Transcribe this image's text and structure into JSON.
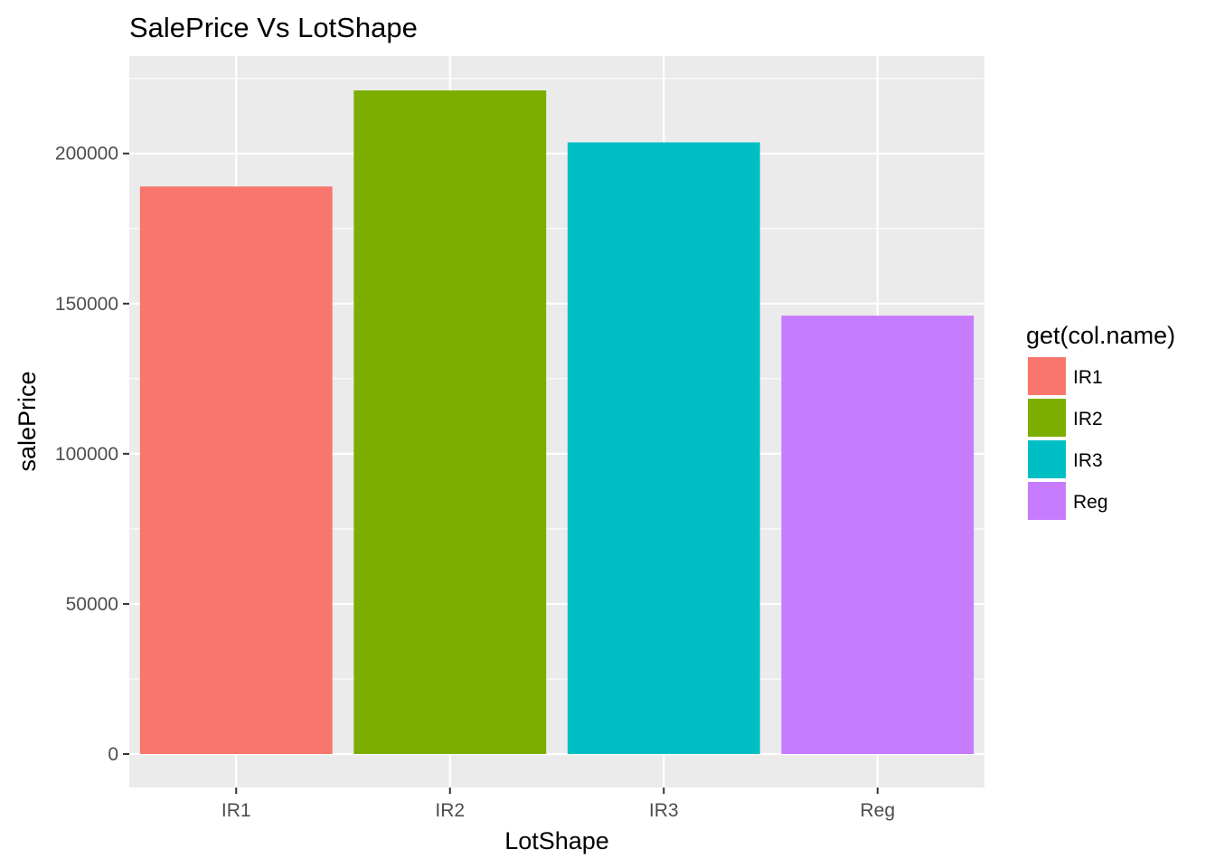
{
  "chart_data": {
    "type": "bar",
    "title": "SalePrice Vs LotShape",
    "xlabel": "LotShape",
    "ylabel": "salePrice",
    "categories": [
      "IR1",
      "IR2",
      "IR3",
      "Reg"
    ],
    "values": [
      189000,
      221000,
      203700,
      146000
    ],
    "colors": [
      "#F8766D",
      "#7CAE00",
      "#00BFC4",
      "#C77CFF"
    ],
    "ylim": [
      0,
      221000
    ],
    "yticks": [
      0,
      50000,
      100000,
      150000,
      200000
    ],
    "ytick_labels": [
      "0",
      "50000",
      "100000",
      "150000",
      "200000"
    ],
    "grid": true,
    "panel_background": "#EBEBEB",
    "legend": {
      "title": "get(col.name)",
      "placement": "right",
      "entries": [
        "IR1",
        "IR2",
        "IR3",
        "Reg"
      ]
    }
  }
}
